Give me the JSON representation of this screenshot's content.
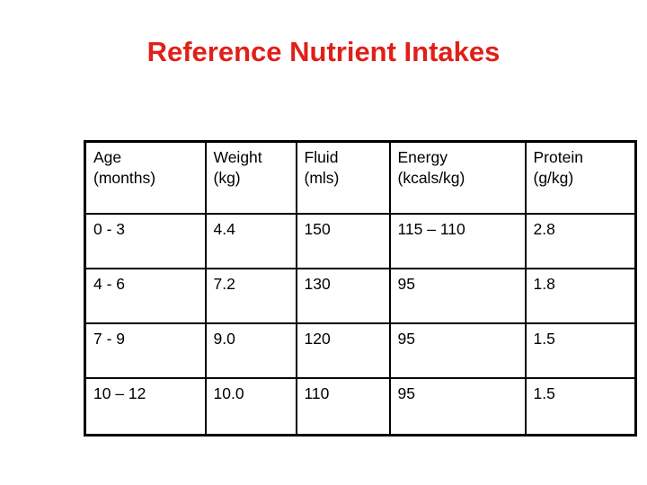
{
  "slide": {
    "title": "Reference Nutrient Intakes"
  },
  "colors": {
    "background": "#FFFFFF",
    "title_red": "#E02018",
    "table_border": "#000000",
    "table_text": "#000000"
  },
  "table": {
    "headers": [
      "Age\n(months)",
      "Weight\n(kg)",
      "Fluid\n(mls)",
      "Energy\n(kcals/kg)",
      "Protein\n(g/kg)"
    ],
    "rows": [
      {
        "cells": [
          "0 - 3",
          "4.4",
          "150",
          "115 – 110",
          "2.8"
        ]
      },
      {
        "cells": [
          "4 - 6",
          "7.2",
          "130",
          "95",
          "1.8"
        ]
      },
      {
        "cells": [
          "7 - 9",
          "9.0",
          "120",
          "95",
          "1.5"
        ]
      },
      {
        "cells": [
          "10 – 12",
          "10.0",
          "110",
          "95",
          "1.5"
        ]
      }
    ]
  },
  "chart_data": {
    "type": "table",
    "title": "Reference Nutrient Intakes",
    "columns": [
      "Age (months)",
      "Weight (kg)",
      "Fluid (mls)",
      "Energy (kcals/kg)",
      "Protein (g/kg)"
    ],
    "rows": [
      [
        "0 - 3",
        "4.4",
        "150",
        "115 – 110",
        "2.8"
      ],
      [
        "4 - 6",
        "7.2",
        "130",
        "95",
        "1.8"
      ],
      [
        "7 - 9",
        "9.0",
        "120",
        "95",
        "1.5"
      ],
      [
        "10 – 12",
        "10.0",
        "110",
        "95",
        "1.5"
      ]
    ]
  }
}
